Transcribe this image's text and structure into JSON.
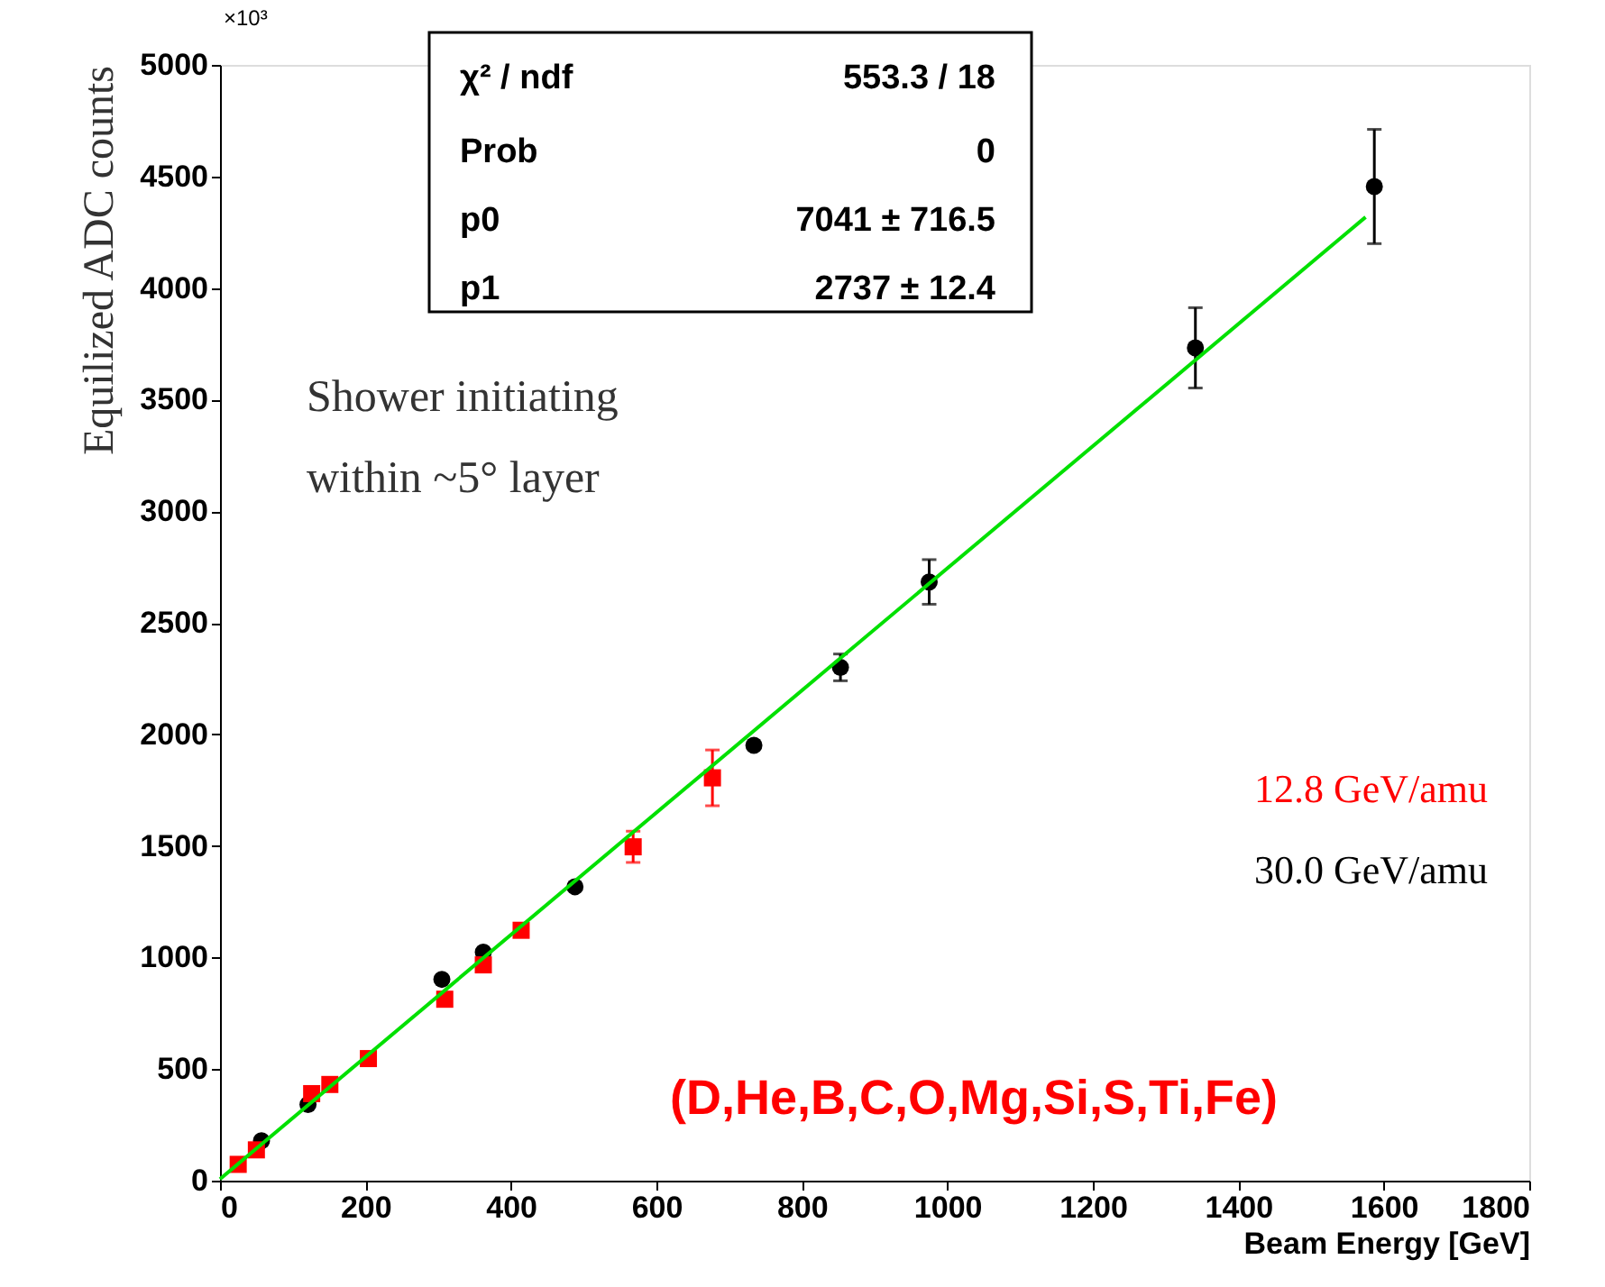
{
  "chart_data": {
    "type": "scatter",
    "xlabel": "Beam Energy [GeV]",
    "ylabel": "Equilized ADC counts",
    "xlim": [
      0,
      1800
    ],
    "ylim": [
      0,
      5000
    ],
    "xticks": [
      0,
      200,
      400,
      600,
      800,
      1000,
      1200,
      1400,
      1600,
      1800
    ],
    "yticks": [
      0,
      500,
      1000,
      1500,
      2000,
      2500,
      3000,
      3500,
      4000,
      4500,
      5000
    ],
    "grid": false,
    "series": [
      {
        "name": "30.0 GeV/amu",
        "color": "#000000",
        "marker": "circle",
        "x": [
          57,
          121,
          305,
          362,
          488,
          734,
          853,
          975,
          1341,
          1587
        ],
        "values": [
          179,
          341,
          902,
          1024,
          1317,
          1951,
          2300,
          2683,
          3732,
          4455
        ],
        "errors": [
          null,
          null,
          null,
          null,
          null,
          null,
          60,
          100,
          180,
          256
        ]
      },
      {
        "name": "12.8 GeV/amu",
        "color": "#ff0000",
        "marker": "square",
        "x": [
          25,
          50,
          126,
          151,
          204,
          309,
          362,
          414,
          568,
          677
        ],
        "values": [
          73,
          138,
          390,
          431,
          547,
          813,
          967,
          1122,
          1496,
          1805
        ],
        "errors": [
          null,
          null,
          null,
          null,
          null,
          null,
          null,
          null,
          70,
          125
        ]
      },
      {
        "type": "line",
        "color": "#00e000",
        "marker": "none",
        "x": [
          0,
          1575
        ],
        "values": [
          7,
          4318
        ]
      }
    ],
    "annotations": [
      "×10³",
      "χ² / ndf",
      "553.3 / 18",
      "Prob",
      "0",
      "p0",
      "7041 ± 716.5",
      "p1",
      "2737 ±  12.4",
      "Shower initiating\nwithin ~5° layer",
      "(D,He,B,C,O,Mg,Si,S,Ti,Fe)"
    ]
  }
}
